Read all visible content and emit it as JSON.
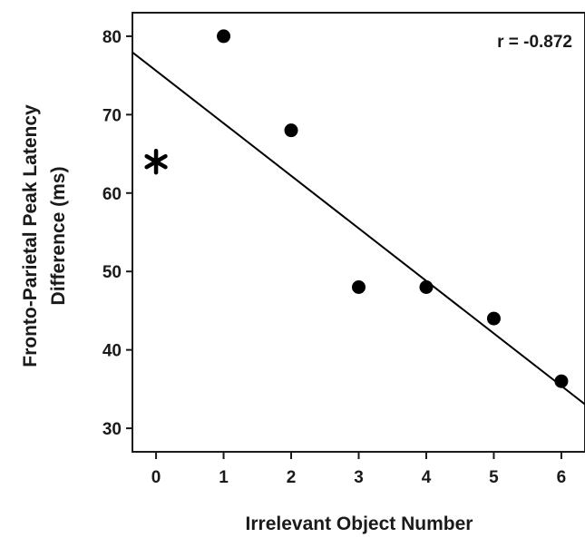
{
  "chart_data": {
    "type": "scatter",
    "title": "",
    "xlabel": "Irrelevant Object Number",
    "ylabel_lines": [
      "Fronto-Parietal Peak Latency",
      "Difference (ms)"
    ],
    "xlim": [
      -0.35,
      6.35
    ],
    "ylim": [
      27,
      83
    ],
    "x_ticks": [
      0,
      1,
      2,
      3,
      4,
      5,
      6
    ],
    "y_ticks": [
      30,
      40,
      50,
      60,
      70,
      80
    ],
    "grid": false,
    "legend": "none",
    "points": [
      {
        "x": 1,
        "y": 80
      },
      {
        "x": 2,
        "y": 68
      },
      {
        "x": 3,
        "y": 48
      },
      {
        "x": 4,
        "y": 48
      },
      {
        "x": 5,
        "y": 44
      },
      {
        "x": 6,
        "y": 36
      }
    ],
    "outlier": {
      "x": 0,
      "y": 64,
      "marker": "asterisk"
    },
    "fit_line": {
      "slope": -6.7,
      "intercept": 75.6
    },
    "annotation": "r = -0.872",
    "colors": {
      "marker": "#000000",
      "line": "#000000",
      "axes": "#1a1a1a"
    }
  }
}
